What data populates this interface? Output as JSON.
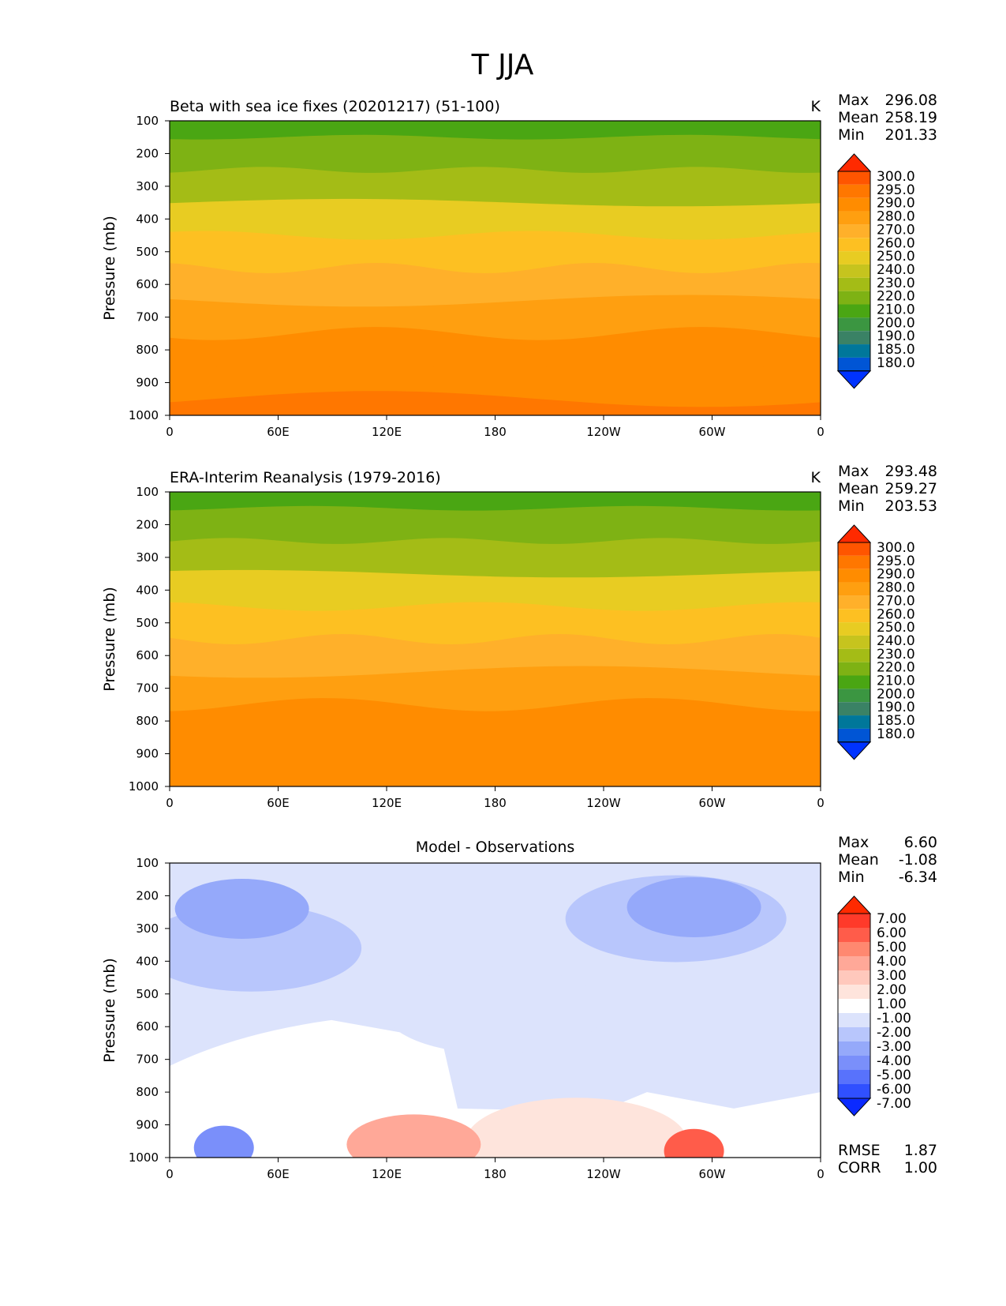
{
  "title": "T JJA",
  "x_ticks": [
    "0",
    "60E",
    "120E",
    "180",
    "120W",
    "60W",
    "0"
  ],
  "y_ticks": [
    "100",
    "200",
    "300",
    "400",
    "500",
    "600",
    "700",
    "800",
    "900",
    "1000"
  ],
  "ylabel": "Pressure (mb)",
  "chart_data": [
    {
      "type": "heatmap",
      "title": "Beta with sea ice fixes (20201217) (51-100)",
      "units": "K",
      "x_range": [
        0,
        360
      ],
      "y_range": [
        100,
        1000
      ],
      "y_inverted": true,
      "stats": {
        "Max": "296.08",
        "Mean": "258.19",
        "Min": "201.33"
      },
      "colorbar": {
        "labels": [
          "300.0",
          "295.0",
          "290.0",
          "280.0",
          "270.0",
          "260.0",
          "250.0",
          "240.0",
          "230.0",
          "220.0",
          "210.0",
          "200.0",
          "190.0",
          "185.0",
          "180.0"
        ],
        "colors": [
          "#ff2a00",
          "#ff5500",
          "#ff7700",
          "#ff8c00",
          "#ff9f10",
          "#ffb02a",
          "#fdc022",
          "#e8cc22",
          "#c6c41e",
          "#a4bc16",
          "#7eb214",
          "#4aa613",
          "#3b9641",
          "#3a8265",
          "#00779a",
          "#0055d5",
          "#0033ff"
        ]
      },
      "bands": [
        {
          "p": 100,
          "value": 205
        },
        {
          "p": 200,
          "value": 215
        },
        {
          "p": 300,
          "value": 228
        },
        {
          "p": 400,
          "value": 240
        },
        {
          "p": 500,
          "value": 252
        },
        {
          "p": 600,
          "value": 262
        },
        {
          "p": 700,
          "value": 272
        },
        {
          "p": 800,
          "value": 280
        },
        {
          "p": 900,
          "value": 284
        },
        {
          "p": 1000,
          "value": 290
        }
      ]
    },
    {
      "type": "heatmap",
      "title": "ERA-Interim Reanalysis (1979-2016)",
      "units": "K",
      "x_range": [
        0,
        360
      ],
      "y_range": [
        100,
        1000
      ],
      "y_inverted": true,
      "stats": {
        "Max": "293.48",
        "Mean": "259.27",
        "Min": "203.53"
      },
      "colorbar": {
        "labels": [
          "300.0",
          "295.0",
          "290.0",
          "280.0",
          "270.0",
          "260.0",
          "250.0",
          "240.0",
          "230.0",
          "220.0",
          "210.0",
          "200.0",
          "190.0",
          "185.0",
          "180.0"
        ],
        "colors": [
          "#ff2a00",
          "#ff5500",
          "#ff7700",
          "#ff8c00",
          "#ff9f10",
          "#ffb02a",
          "#fdc022",
          "#e8cc22",
          "#c6c41e",
          "#a4bc16",
          "#7eb214",
          "#4aa613",
          "#3b9641",
          "#3a8265",
          "#00779a",
          "#0055d5",
          "#0033ff"
        ]
      },
      "bands": [
        {
          "p": 100,
          "value": 206
        },
        {
          "p": 200,
          "value": 216
        },
        {
          "p": 300,
          "value": 229
        },
        {
          "p": 400,
          "value": 241
        },
        {
          "p": 500,
          "value": 253
        },
        {
          "p": 600,
          "value": 263
        },
        {
          "p": 700,
          "value": 273
        },
        {
          "p": 800,
          "value": 281
        },
        {
          "p": 900,
          "value": 285
        },
        {
          "p": 1000,
          "value": 289
        }
      ]
    },
    {
      "type": "heatmap",
      "title": "Model - Observations",
      "units": "",
      "x_range": [
        0,
        360
      ],
      "y_range": [
        100,
        1000
      ],
      "y_inverted": true,
      "stats": {
        "Max": "6.60",
        "Mean": "-1.08",
        "Min": "-6.34"
      },
      "metrics": {
        "RMSE": "1.87",
        "CORR": "1.00"
      },
      "colorbar": {
        "labels": [
          "7.00",
          "6.00",
          "5.00",
          "4.00",
          "3.00",
          "2.00",
          "1.00",
          "-1.00",
          "-2.00",
          "-3.00",
          "-4.00",
          "-5.00",
          "-6.00",
          "-7.00"
        ],
        "colors": [
          "#ff2a00",
          "#ff3a2a",
          "#ff5c4a",
          "#ff8870",
          "#ffa898",
          "#ffc8bc",
          "#fee4dc",
          "#ffffff",
          "#dce3fc",
          "#b8c6fc",
          "#95a9fa",
          "#7a8ffa",
          "#5872fc",
          "#3050ff",
          "#0b2aff"
        ]
      },
      "anomalies": [
        {
          "lon": 180,
          "p": 550,
          "value": -1.5
        },
        {
          "lon": 45,
          "p": 360,
          "value": -2.5
        },
        {
          "lon": 40,
          "p": 240,
          "value": -3.5
        },
        {
          "lon": 280,
          "p": 270,
          "value": -2.5
        },
        {
          "lon": 290,
          "p": 235,
          "value": -3.5
        },
        {
          "lon": 90,
          "p": 780,
          "value": 0.0
        },
        {
          "lon": 225,
          "p": 950,
          "value": 1.5
        },
        {
          "lon": 135,
          "p": 960,
          "value": 3.5
        },
        {
          "lon": 290,
          "p": 980,
          "value": 5.5
        },
        {
          "lon": 30,
          "p": 970,
          "value": -5.0
        }
      ]
    }
  ]
}
